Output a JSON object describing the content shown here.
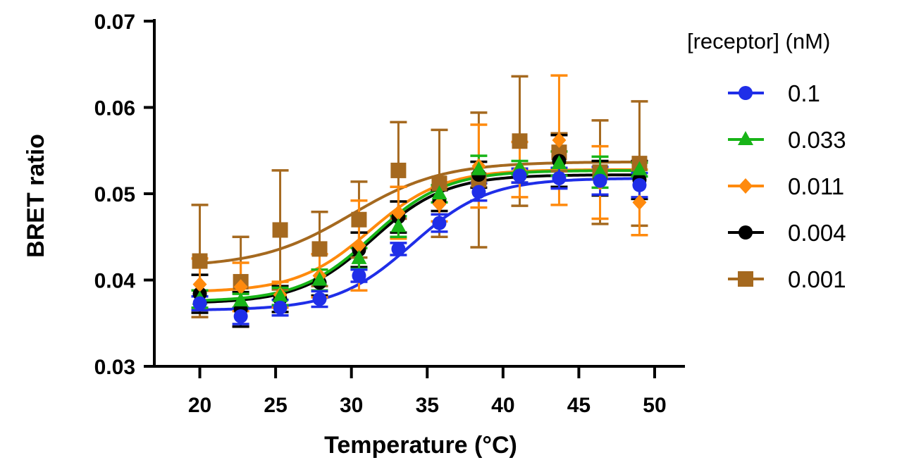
{
  "chart_data": {
    "type": "scatter",
    "title": "",
    "xlabel": "Temperature (°C)",
    "ylabel": "BRET ratio",
    "xlim": [
      17,
      52
    ],
    "ylim": [
      0.03,
      0.07
    ],
    "xticks": [
      20,
      25,
      30,
      35,
      40,
      45,
      50
    ],
    "yticks": [
      0.03,
      0.04,
      0.05,
      0.06,
      0.07
    ],
    "xtick_labels": [
      "20",
      "25",
      "30",
      "35",
      "40",
      "45",
      "50"
    ],
    "ytick_labels": [
      "0.03",
      "0.04",
      "0.05",
      "0.06",
      "0.07"
    ],
    "legend": {
      "title": "[receptor] (nM)",
      "position": "right"
    },
    "grid": false,
    "x": [
      20,
      22.7,
      25.3,
      27.9,
      30.5,
      33.1,
      35.8,
      38.4,
      41.1,
      43.7,
      46.4,
      49.0
    ],
    "series": [
      {
        "name": "0.1",
        "marker": "circle",
        "color": "#1f2ee8",
        "y": [
          0.0373,
          0.0358,
          0.0368,
          0.0378,
          0.0405,
          0.0436,
          0.0466,
          0.0502,
          0.0521,
          0.0518,
          0.0515,
          0.051
        ],
        "err": [
          0.0008,
          0.0009,
          0.0009,
          0.0009,
          0.0007,
          0.0007,
          0.001,
          0.001,
          0.0008,
          0.0012,
          0.0016,
          0.0014
        ],
        "fit": {
          "bottom": 0.0365,
          "top": 0.0518,
          "x50": 34.0,
          "slope": 2.5
        }
      },
      {
        "name": "0.033",
        "marker": "triangle",
        "color": "#18b418",
        "y": [
          0.0378,
          0.0376,
          0.0381,
          0.04,
          0.0425,
          0.0462,
          0.05,
          0.0528,
          0.053,
          0.0535,
          0.0525,
          0.0528
        ],
        "err": [
          0.001,
          0.0008,
          0.001,
          0.0012,
          0.0012,
          0.0012,
          0.001,
          0.0016,
          0.0008,
          0.0014,
          0.0018,
          0.0008
        ],
        "fit": {
          "bottom": 0.0375,
          "top": 0.0527,
          "x50": 31.4,
          "slope": 2.4
        }
      },
      {
        "name": "0.011",
        "marker": "diamond",
        "color": "#ff8a0d",
        "y": [
          0.0395,
          0.0392,
          0.0383,
          0.0405,
          0.044,
          0.0478,
          0.0488,
          0.0532,
          0.0528,
          0.0562,
          0.0513,
          0.049
        ],
        "err": [
          0.003,
          0.0028,
          0.0015,
          0.0025,
          0.0052,
          0.003,
          0.002,
          0.0048,
          0.0032,
          0.0075,
          0.0042,
          0.0038
        ],
        "fit": {
          "bottom": 0.0386,
          "top": 0.0528,
          "x50": 31.2,
          "slope": 2.4
        }
      },
      {
        "name": "0.004",
        "marker": "circle",
        "color": "#000000",
        "y": [
          0.0384,
          0.0366,
          0.0378,
          0.0397,
          0.0435,
          0.0473,
          0.0492,
          0.0522,
          0.0521,
          0.0538,
          0.0518,
          0.0516
        ],
        "err": [
          0.0022,
          0.002,
          0.0015,
          0.0015,
          0.002,
          0.0018,
          0.0012,
          0.0015,
          0.0008,
          0.003,
          0.002,
          0.0022
        ],
        "fit": {
          "bottom": 0.0373,
          "top": 0.0522,
          "x50": 31.4,
          "slope": 2.4
        }
      },
      {
        "name": "0.001",
        "marker": "square",
        "color": "#a5691f",
        "y": [
          0.0422,
          0.0398,
          0.0458,
          0.0436,
          0.047,
          0.0527,
          0.0512,
          0.0516,
          0.0561,
          0.0548,
          0.0525,
          0.0535
        ],
        "err": [
          0.0065,
          0.0052,
          0.0069,
          0.0043,
          0.0044,
          0.0056,
          0.0062,
          0.0078,
          0.0075,
          0.0022,
          0.006,
          0.0072
        ],
        "fit": {
          "bottom": 0.0415,
          "top": 0.0537,
          "x50": 30.0,
          "slope": 3.0
        }
      }
    ]
  }
}
